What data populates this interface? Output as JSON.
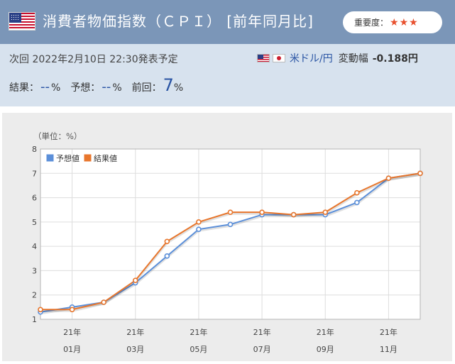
{
  "header": {
    "title": "消費者物価指数（ＣＰＩ） [前年同月比]",
    "importance_label": "重要度：",
    "importance_stars": "★★★"
  },
  "info": {
    "next_release": "次回 2022年2月10日 22:30発表予定",
    "pair": "米ドル/円",
    "volatility_label": "変動幅",
    "volatility_value": "-0.188円",
    "result_label": "結果：",
    "result_value": "--",
    "forecast_label": "予想：",
    "forecast_value": "--",
    "previous_label": "前回：",
    "previous_value": "7",
    "percent": "%"
  },
  "colors": {
    "header_bg": "#7b96b8",
    "info_bg": "#d7e2ee",
    "forecast_series": "#5b8fd9",
    "actual_series": "#e8762c",
    "stars": "#e8502e"
  },
  "chart_data": {
    "type": "line",
    "unit_label": "（単位：%）",
    "ylim": [
      1,
      8
    ],
    "yticks": [
      1,
      2,
      3,
      4,
      5,
      6,
      7,
      8
    ],
    "x": [
      "2020-12",
      "2021-01",
      "2021-02",
      "2021-03",
      "2021-04",
      "2021-05",
      "2021-06",
      "2021-07",
      "2021-08",
      "2021-09",
      "2021-10",
      "2021-11",
      "2021-12"
    ],
    "x_tick_labels": [
      {
        "top": "21年",
        "bottom": "01月"
      },
      {
        "top": "21年",
        "bottom": "03月"
      },
      {
        "top": "21年",
        "bottom": "05月"
      },
      {
        "top": "21年",
        "bottom": "07月"
      },
      {
        "top": "21年",
        "bottom": "09月"
      },
      {
        "top": "21年",
        "bottom": "11月"
      }
    ],
    "grid": true,
    "legend_position": "top-left",
    "series": [
      {
        "name": "予想値",
        "values": [
          1.3,
          1.5,
          1.7,
          2.5,
          3.6,
          4.7,
          4.9,
          5.3,
          5.3,
          5.3,
          5.8,
          6.8,
          7.0
        ]
      },
      {
        "name": "結果値",
        "values": [
          1.4,
          1.4,
          1.7,
          2.6,
          4.2,
          5.0,
          5.4,
          5.4,
          5.3,
          5.4,
          6.2,
          6.8,
          7.0
        ]
      }
    ]
  }
}
